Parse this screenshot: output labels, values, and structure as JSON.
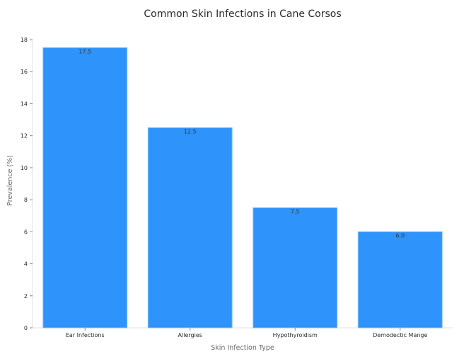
{
  "chart_data": {
    "type": "bar",
    "title": "Common Skin Infections in Cane Corsos",
    "xlabel": "Skin Infection Type",
    "ylabel": "Prevalence (%)",
    "categories": [
      "Ear Infections",
      "Allergies",
      "Hypothyroidism",
      "Demodectic Mange"
    ],
    "values": [
      17.5,
      12.5,
      7.5,
      6.0
    ],
    "value_labels": [
      "17.5",
      "12.5",
      "7.5",
      "6.0"
    ],
    "ylim": [
      0,
      18
    ],
    "yticks": [
      0,
      2,
      4,
      6,
      8,
      10,
      12,
      14,
      16,
      18
    ],
    "ytick_labels": [
      "0",
      "2",
      "4",
      "6",
      "8",
      "10",
      "12",
      "14",
      "16",
      "18"
    ],
    "bar_color": "#2e93fa",
    "grid": false,
    "legend": "none"
  }
}
